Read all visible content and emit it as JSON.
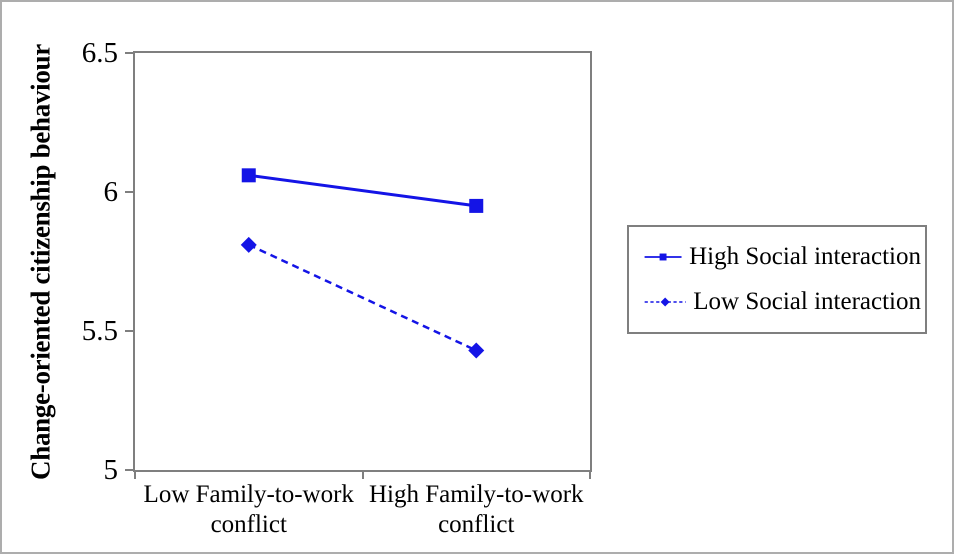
{
  "chart_data": {
    "type": "line",
    "title": "",
    "ylabel": "Change-oriented citizenship behaviour",
    "xlabel": "",
    "ylim": [
      5,
      6.5
    ],
    "yticks": [
      5,
      5.5,
      6,
      6.5
    ],
    "ytick_labels": [
      "5",
      "5.5",
      "6",
      "6.5"
    ],
    "categories": [
      "Low Family-to-work\nconflict",
      "High Family-to-work\nconflict"
    ],
    "series": [
      {
        "name": "High Social interaction",
        "values": [
          6.06,
          5.95
        ],
        "line_style": "solid",
        "marker": "square",
        "color": "#1414e6"
      },
      {
        "name": "Low Social interaction",
        "values": [
          5.81,
          5.43
        ],
        "line_style": "dashed",
        "marker": "diamond",
        "color": "#1414e6"
      }
    ],
    "grid": false,
    "legend_position": "right"
  },
  "colors": {
    "series_blue": "#1414e6",
    "axis_gray": "#7f7f7f",
    "figure_border_gray": "#adadad",
    "text_black": "#000000"
  }
}
